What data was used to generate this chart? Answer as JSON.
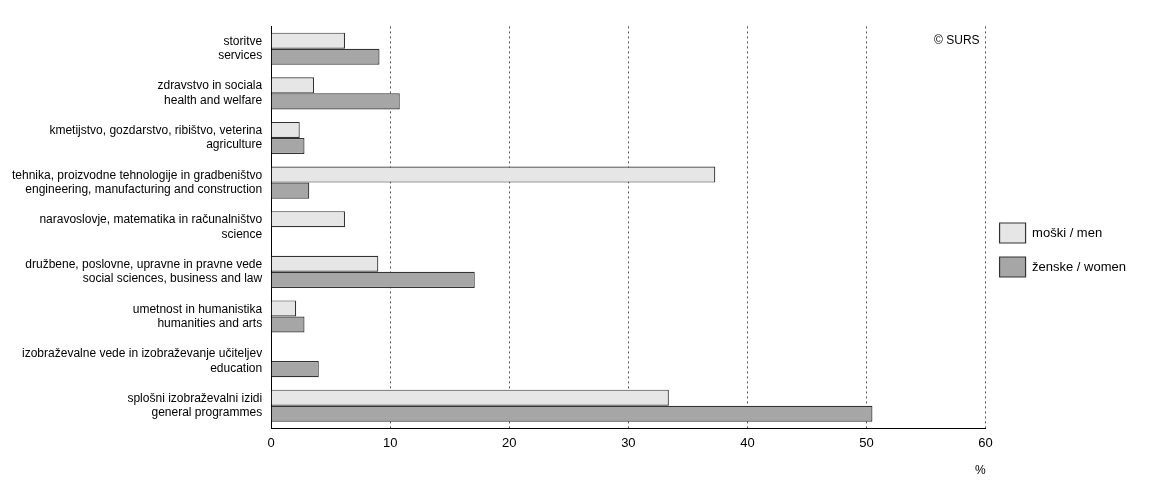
{
  "chart_data": {
    "type": "bar",
    "orientation": "horizontal",
    "xlabel": "%",
    "categories": [
      "storitve\nservices",
      "zdravstvo in sociala\nhealth and welfare",
      "kmetijstvo, gozdarstvo, ribištvo, veterina\nagriculture",
      "tehnika, proizvodne tehnologije in gradbeništvo\nengineering, manufacturing and construction",
      "naravoslovje, matematika in računalništvo\nscience",
      "družbene, poslovne, upravne in pravne vede\nsocial sciences, business and law",
      "umetnost in humanistika\nhumanities and arts",
      "izobraževalne vede in izobraževanje učiteljev\neducation",
      "splošni izobraževalni izidi\ngeneral programmes"
    ],
    "series": [
      {
        "name": "moški / men",
        "color": "#e6e6e6",
        "values": [
          6.2,
          3.6,
          2.4,
          37.3,
          6.2,
          9.0,
          2.1,
          null,
          33.4
        ]
      },
      {
        "name": "ženske / women",
        "color": "#a6a6a6",
        "values": [
          9.1,
          10.8,
          2.8,
          3.2,
          null,
          17.1,
          2.8,
          4.0,
          50.5
        ]
      }
    ],
    "xlim": [
      0,
      60
    ],
    "xticks": [
      0,
      10,
      20,
      30,
      40,
      50,
      60
    ],
    "grid": "x",
    "legend": "right",
    "annotations": [
      "© SURS"
    ]
  }
}
